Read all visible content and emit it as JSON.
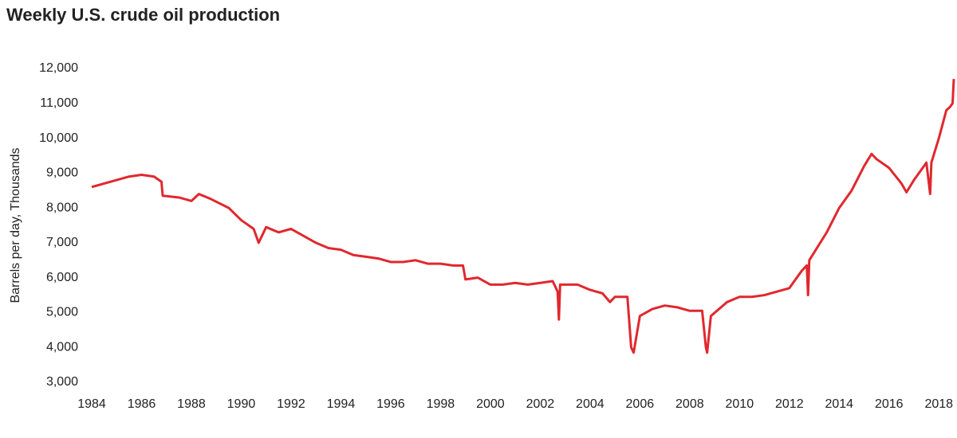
{
  "chart_data": {
    "type": "line",
    "title": "Weekly U.S. crude oil production",
    "y_label": "Barrels per day, Thousands",
    "xlim": [
      1984,
      2018.6
    ],
    "xticks": [
      1984,
      1986,
      1988,
      1990,
      1992,
      1994,
      1996,
      1998,
      2000,
      2002,
      2004,
      2006,
      2008,
      2010,
      2012,
      2014,
      2016,
      2018
    ],
    "ylim": [
      3000,
      12000
    ],
    "yticks": [
      {
        "value": 3000,
        "label": "3,000"
      },
      {
        "value": 4000,
        "label": "4,000"
      },
      {
        "value": 5000,
        "label": "5,000"
      },
      {
        "value": 6000,
        "label": "6,000"
      },
      {
        "value": 7000,
        "label": "7,000"
      },
      {
        "value": 8000,
        "label": "8,000"
      },
      {
        "value": 9000,
        "label": "9,000"
      },
      {
        "value": 10000,
        "label": "10,000"
      },
      {
        "value": 11000,
        "label": "11,000"
      },
      {
        "value": 12000,
        "label": "12,000"
      }
    ],
    "grid": false,
    "x": [
      1984.0,
      1984.5,
      1985.0,
      1985.5,
      1986.0,
      1986.5,
      1986.8,
      1986.85,
      1987.5,
      1988.0,
      1988.3,
      1988.8,
      1989.5,
      1990.0,
      1990.5,
      1990.7,
      1991.0,
      1991.5,
      1992.0,
      1992.5,
      1993.0,
      1993.5,
      1994.0,
      1994.5,
      1995.0,
      1995.5,
      1996.0,
      1996.5,
      1997.0,
      1997.5,
      1998.0,
      1998.5,
      1998.9,
      1999.0,
      1999.5,
      2000.0,
      2000.5,
      2001.0,
      2001.5,
      2002.0,
      2002.5,
      2002.7,
      2002.75,
      2002.8,
      2003.5,
      2004.0,
      2004.5,
      2004.8,
      2005.0,
      2005.5,
      2005.65,
      2005.75,
      2006.0,
      2006.5,
      2007.0,
      2007.5,
      2008.0,
      2008.5,
      2008.65,
      2008.7,
      2008.85,
      2009.5,
      2010.0,
      2010.5,
      2011.0,
      2011.5,
      2012.0,
      2012.5,
      2012.7,
      2012.75,
      2012.8,
      2013.5,
      2014.0,
      2014.5,
      2015.0,
      2015.3,
      2015.5,
      2016.0,
      2016.5,
      2016.7,
      2017.0,
      2017.5,
      2017.65,
      2017.7,
      2018.0,
      2018.3,
      2018.45,
      2018.55,
      2018.6
    ],
    "series": [
      {
        "name": "Weekly U.S. crude oil production",
        "color": "#e0282e",
        "values": [
          8600,
          8700,
          8800,
          8900,
          8950,
          8900,
          8750,
          8350,
          8300,
          8200,
          8400,
          8250,
          8000,
          7650,
          7400,
          7000,
          7450,
          7300,
          7400,
          7200,
          7000,
          6850,
          6800,
          6650,
          6600,
          6550,
          6450,
          6450,
          6500,
          6400,
          6400,
          6350,
          6350,
          5950,
          6000,
          5800,
          5800,
          5850,
          5800,
          5850,
          5900,
          5600,
          4800,
          5800,
          5800,
          5650,
          5550,
          5300,
          5450,
          5450,
          4000,
          3850,
          4900,
          5100,
          5200,
          5150,
          5050,
          5050,
          4000,
          3850,
          4900,
          5300,
          5450,
          5450,
          5500,
          5600,
          5700,
          6200,
          6350,
          5500,
          6500,
          7300,
          8000,
          8500,
          9200,
          9550,
          9400,
          9150,
          8700,
          8450,
          8800,
          9300,
          8400,
          9300,
          10000,
          10800,
          10900,
          11000,
          11700
        ]
      }
    ]
  }
}
